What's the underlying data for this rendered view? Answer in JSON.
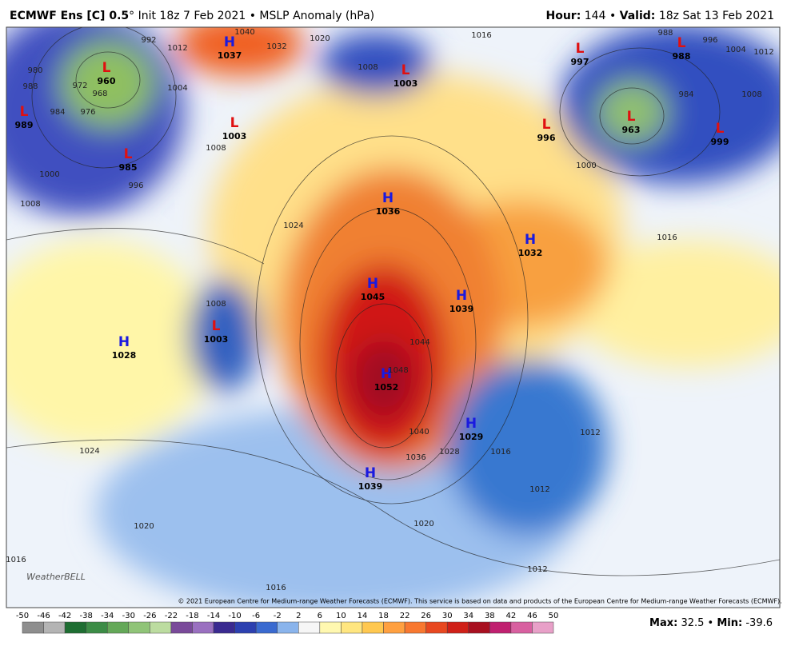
{
  "header": {
    "title_bold": "ECMWF Ens [C] 0.5",
    "title_rest": "° Init 18z 7 Feb 2021 • MSLP Anomaly (hPa)",
    "hour_label": "Hour:",
    "hour": 144,
    "sep": "•",
    "valid_label": "Valid:",
    "valid": "18z Sat 13 Feb 2021"
  },
  "map": {
    "centers": [
      {
        "type": "H",
        "value": 1037
      },
      {
        "type": "L",
        "value": 960
      },
      {
        "type": "L",
        "value": 989
      },
      {
        "type": "L",
        "value": 985
      },
      {
        "type": "L",
        "value": 1003
      },
      {
        "type": "L",
        "value": 1003
      },
      {
        "type": "L",
        "value": 997
      },
      {
        "type": "L",
        "value": 988
      },
      {
        "type": "L",
        "value": 996
      },
      {
        "type": "L",
        "value": 963
      },
      {
        "type": "L",
        "value": 999
      },
      {
        "type": "H",
        "value": 1036
      },
      {
        "type": "H",
        "value": 1032
      },
      {
        "type": "H",
        "value": 1045
      },
      {
        "type": "H",
        "value": 1039
      },
      {
        "type": "L",
        "value": 1003
      },
      {
        "type": "H",
        "value": 1028
      },
      {
        "type": "H",
        "value": 1052
      },
      {
        "type": "H",
        "value": 1029
      },
      {
        "type": "H",
        "value": 1039
      }
    ],
    "contour_labels": [
      1040,
      1032,
      1020,
      1012,
      1004,
      992,
      980,
      988,
      972,
      968,
      976,
      984,
      1008,
      1000,
      996,
      1008,
      1008,
      1016,
      988,
      996,
      1004,
      1012,
      1008,
      984,
      1000,
      1016,
      1008,
      1044,
      1048,
      1040,
      1036,
      1028,
      1016,
      1012,
      1012,
      1024,
      1020,
      1016,
      1020,
      1012,
      1016,
      1024
    ]
  },
  "copyright": "© 2021 European Centre for Medium-range Weather Forecasts (ECMWF). This service is based on data and products of the European Centre for Medium-range Weather Forecasts (ECMWF).",
  "logo": "WeatherBELL",
  "colorbar": {
    "ticks": [
      -50,
      -46,
      -42,
      -38,
      -34,
      -30,
      -26,
      -22,
      -18,
      -14,
      -10,
      -6,
      -2,
      2,
      6,
      10,
      14,
      18,
      22,
      26,
      30,
      34,
      38,
      42,
      46,
      50
    ],
    "colors": [
      "#8e8e8e",
      "#b4b4b4",
      "#1e6e32",
      "#3c8c46",
      "#64a858",
      "#90c478",
      "#bcdca0",
      "#7a4a9a",
      "#9a70c0",
      "#3a2a90",
      "#2c40b0",
      "#3a6ad0",
      "#8ab4ec",
      "#f6f6f6",
      "#fff8b0",
      "#ffe680",
      "#ffc850",
      "#ffa040",
      "#f87830",
      "#e84820",
      "#d02018",
      "#a81020",
      "#c02070",
      "#d860a0",
      "#e8a0c8",
      "#c8c8c8"
    ]
  },
  "stats": {
    "max_label": "Max:",
    "max": 32.5,
    "sep": "•",
    "min_label": "Min:",
    "min": -39.6
  }
}
